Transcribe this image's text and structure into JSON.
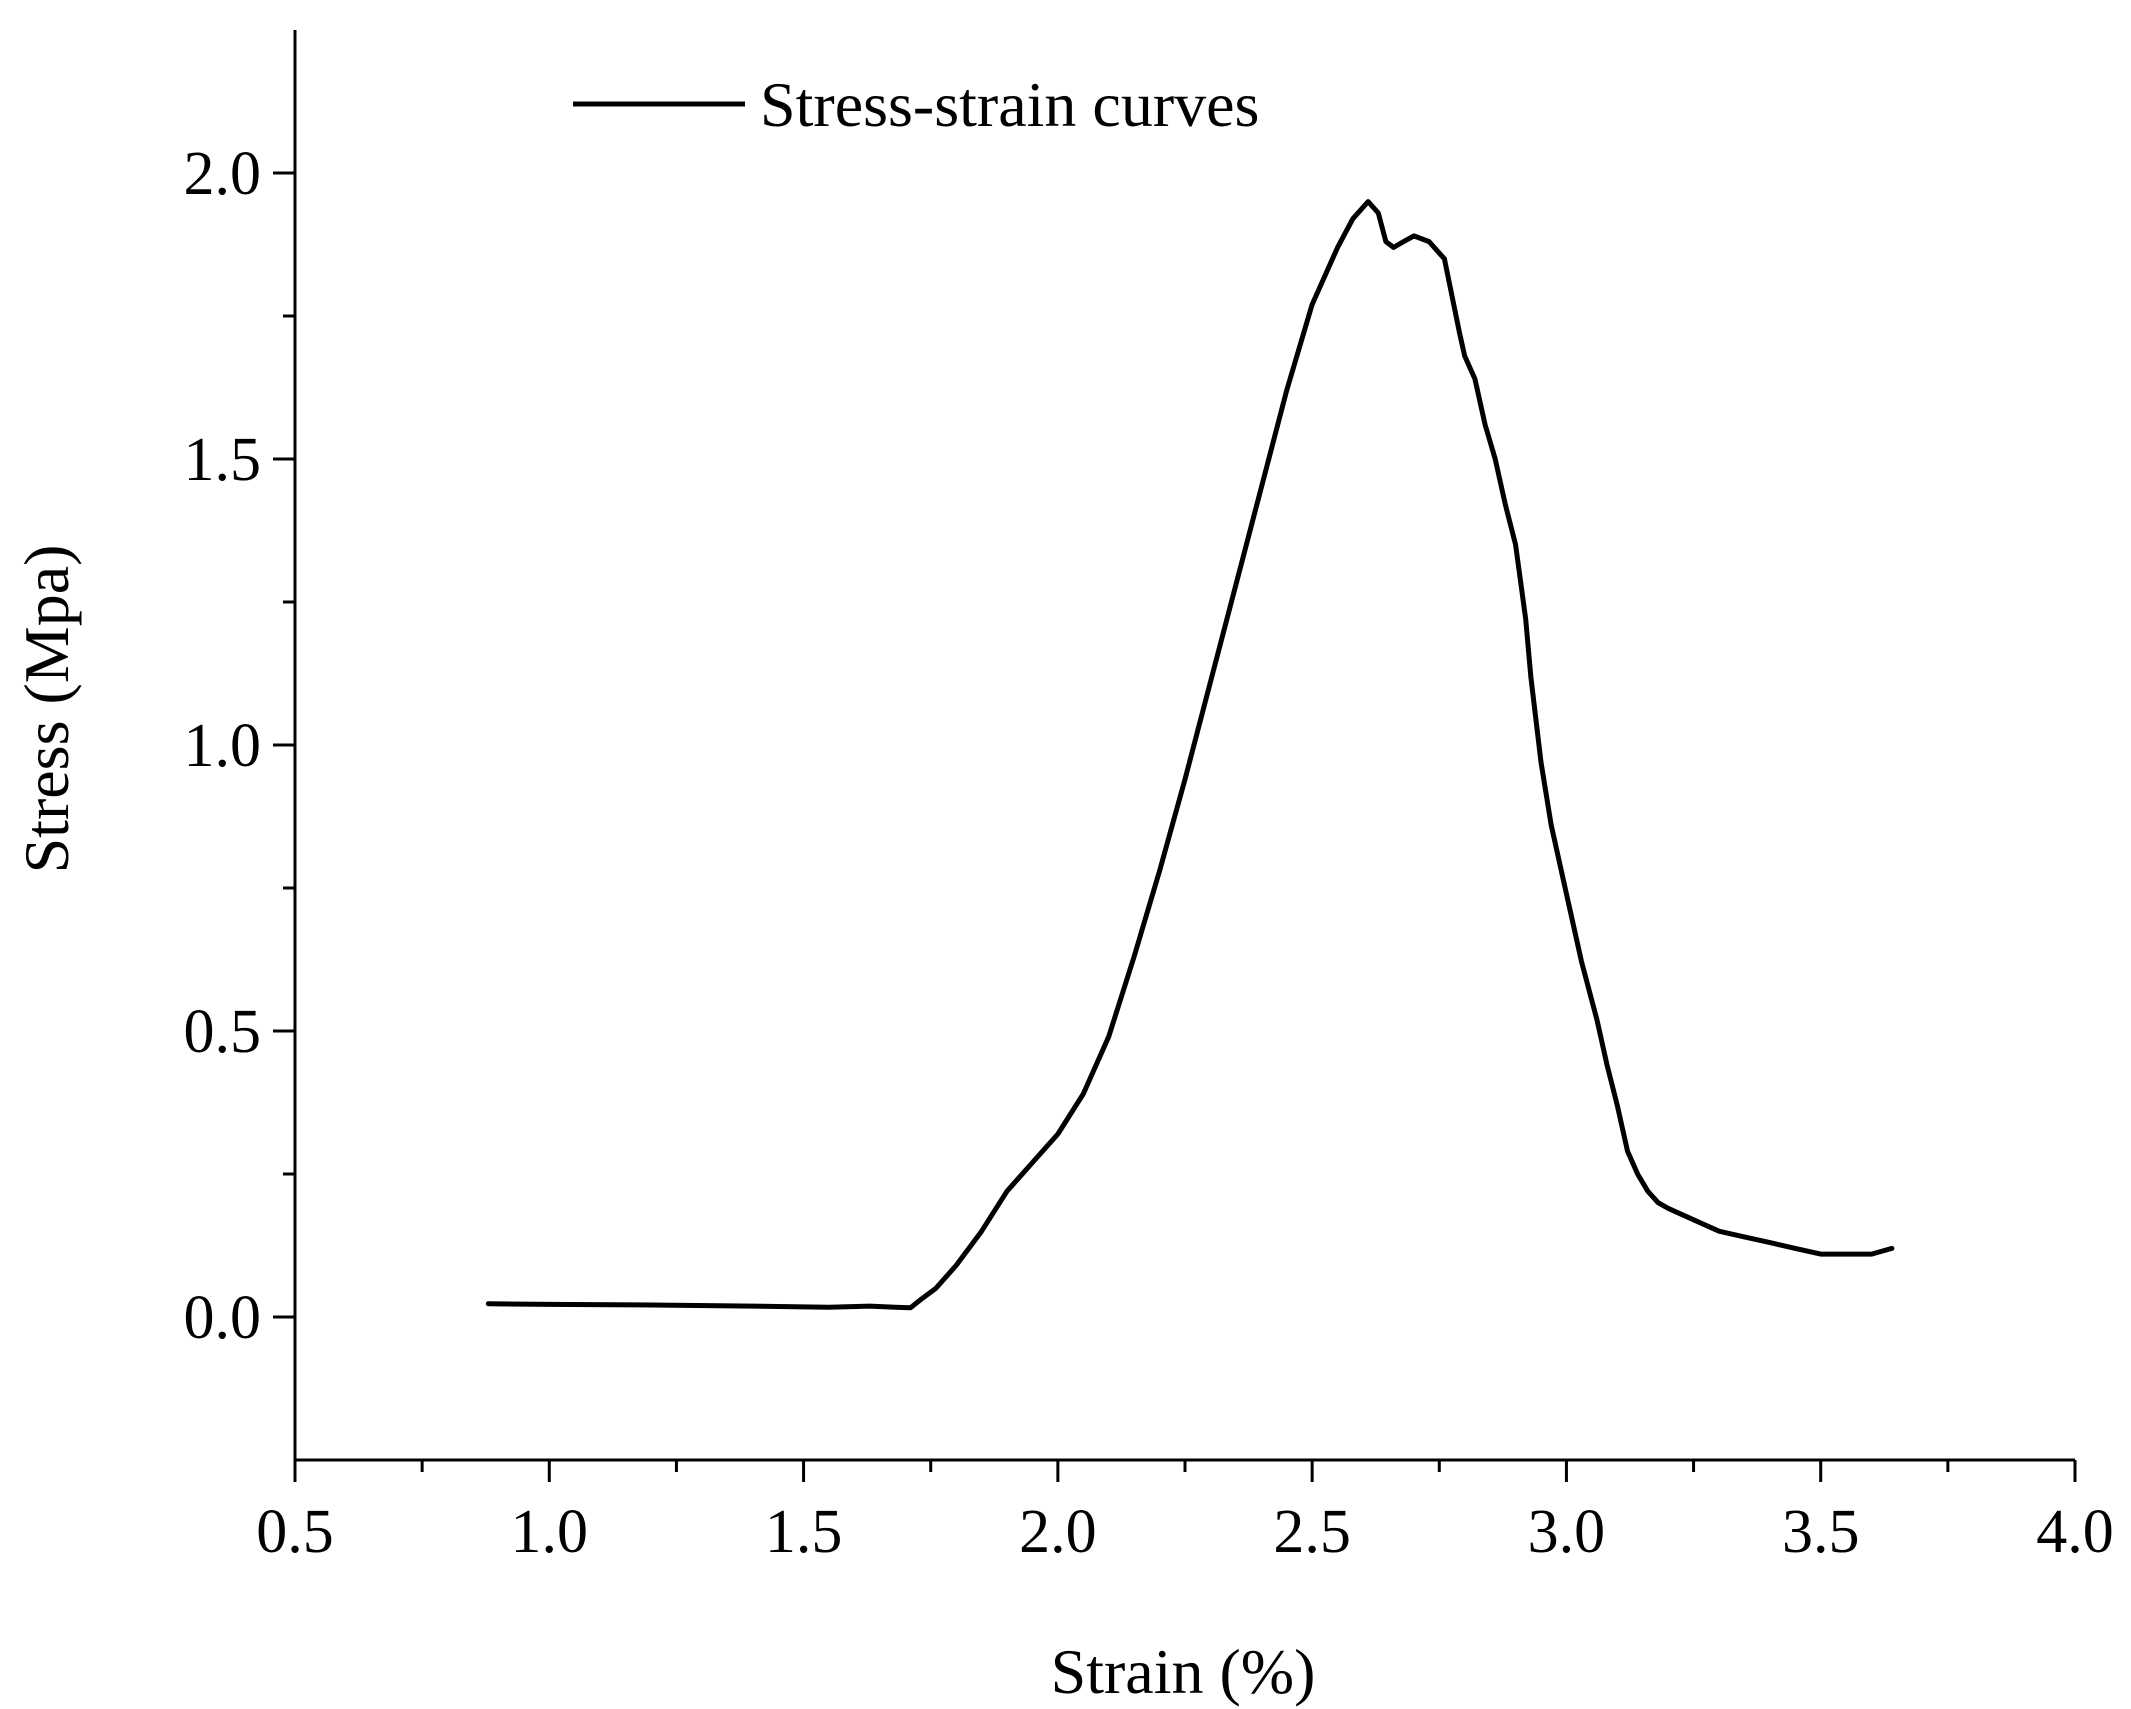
{
  "chart_data": {
    "type": "line",
    "title": "",
    "xlabel": "Strain (%)",
    "ylabel": "Stress (Mpa)",
    "xlim": [
      0.5,
      4.0
    ],
    "ylim": [
      -0.25,
      2.25
    ],
    "xticks": [
      0.5,
      1.0,
      1.5,
      2.0,
      2.5,
      3.0,
      3.5,
      4.0
    ],
    "xtick_labels": [
      "0.5",
      "1.0",
      "1.5",
      "2.0",
      "2.5",
      "3.0",
      "3.5",
      "4.0"
    ],
    "yticks": [
      0.0,
      0.5,
      1.0,
      1.5,
      2.0
    ],
    "ytick_labels": [
      "0.0",
      "0.5",
      "1.0",
      "1.5",
      "2.0"
    ],
    "grid": false,
    "legend_position": "top-left",
    "line_color": "#000000",
    "series": [
      {
        "name": "Stress-strain curves",
        "x": [
          0.88,
          1.0,
          1.2,
          1.4,
          1.55,
          1.63,
          1.68,
          1.71,
          1.73,
          1.76,
          1.8,
          1.85,
          1.9,
          1.95,
          2.0,
          2.05,
          2.1,
          2.15,
          2.2,
          2.25,
          2.3,
          2.35,
          2.4,
          2.45,
          2.5,
          2.55,
          2.58,
          2.61,
          2.63,
          2.645,
          2.66,
          2.68,
          2.7,
          2.73,
          2.76,
          2.79,
          2.8,
          2.82,
          2.84,
          2.86,
          2.88,
          2.9,
          2.92,
          2.93,
          2.95,
          2.97,
          3.0,
          3.03,
          3.06,
          3.08,
          3.1,
          3.12,
          3.14,
          3.16,
          3.18,
          3.2,
          3.25,
          3.3,
          3.35,
          3.4,
          3.45,
          3.5,
          3.55,
          3.6,
          3.64
        ],
        "y": [
          0.023,
          0.022,
          0.021,
          0.019,
          0.017,
          0.019,
          0.017,
          0.016,
          0.03,
          0.05,
          0.09,
          0.15,
          0.22,
          0.27,
          0.32,
          0.39,
          0.49,
          0.63,
          0.78,
          0.94,
          1.11,
          1.28,
          1.45,
          1.62,
          1.77,
          1.87,
          1.92,
          1.95,
          1.93,
          1.88,
          1.87,
          1.88,
          1.89,
          1.88,
          1.85,
          1.72,
          1.68,
          1.64,
          1.56,
          1.5,
          1.42,
          1.35,
          1.22,
          1.12,
          0.97,
          0.86,
          0.74,
          0.62,
          0.52,
          0.44,
          0.37,
          0.29,
          0.25,
          0.22,
          0.2,
          0.19,
          0.17,
          0.15,
          0.14,
          0.13,
          0.12,
          0.11,
          0.11,
          0.11,
          0.12
        ]
      }
    ]
  }
}
